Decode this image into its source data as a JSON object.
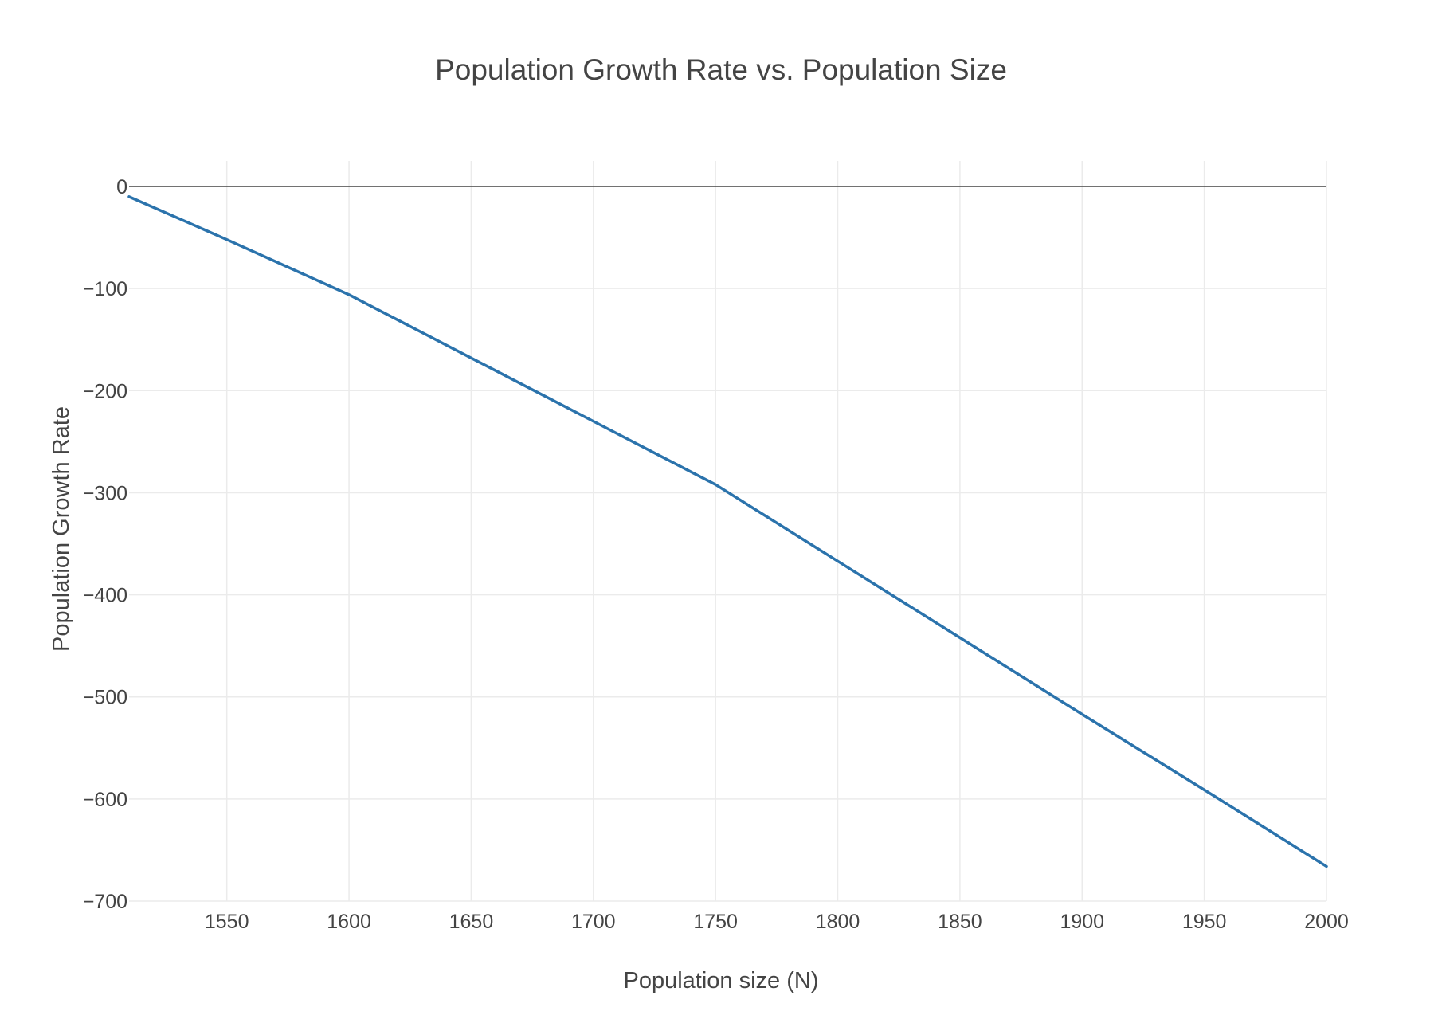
{
  "chart_data": {
    "type": "line",
    "title": "Population Growth Rate vs. Population Size",
    "xlabel": "Population size (N)",
    "ylabel": "Population Growth Rate",
    "xlim": [
      1510,
      2000
    ],
    "ylim": [
      -700,
      25
    ],
    "x_ticks": [
      1550,
      1600,
      1650,
      1700,
      1750,
      1800,
      1850,
      1900,
      1950,
      2000
    ],
    "y_ticks": [
      0,
      -100,
      -200,
      -300,
      -400,
      -500,
      -600,
      -700
    ],
    "x_tick_labels": [
      "1550",
      "1600",
      "1650",
      "1700",
      "1750",
      "1800",
      "1850",
      "1900",
      "1950",
      "2000"
    ],
    "y_tick_labels": [
      "0",
      "−100",
      "−200",
      "−300",
      "−400",
      "−500",
      "−600",
      "−700"
    ],
    "grid": true,
    "zero_line": true,
    "series": [
      {
        "color": "#2b73ac",
        "x": [
          1510,
          1550,
          1600,
          1650,
          1700,
          1750,
          1800,
          1850,
          1900,
          1950,
          2000
        ],
        "y": [
          -10,
          -52,
          -106,
          -168,
          -230,
          -292,
          -367,
          -442,
          -517,
          -591,
          -666
        ]
      }
    ]
  }
}
